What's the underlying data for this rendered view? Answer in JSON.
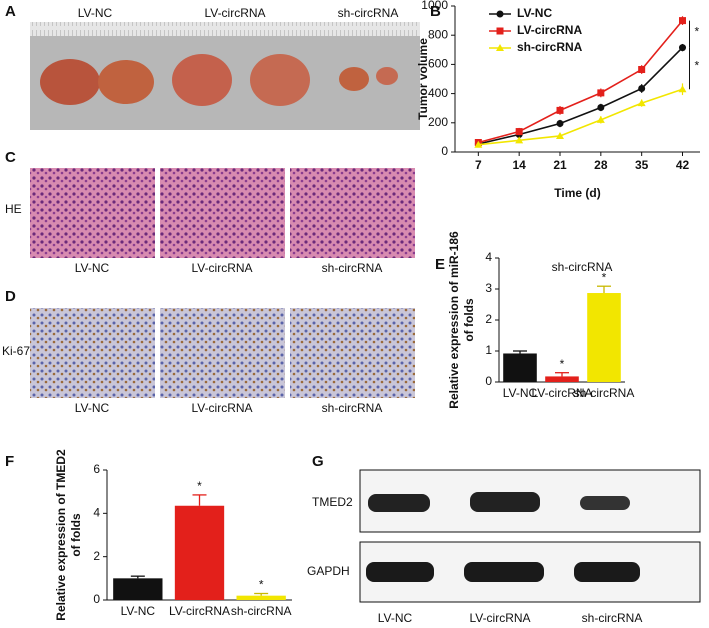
{
  "panels": {
    "A": {
      "letter": "A",
      "labels": [
        "LV-NC",
        "LV-circRNA",
        "sh-circRNA"
      ]
    },
    "C": {
      "letter": "C",
      "stain": "HE",
      "labels": [
        "LV-NC",
        "LV-circRNA",
        "sh-circRNA"
      ]
    },
    "D": {
      "letter": "D",
      "stain": "Ki-67",
      "labels": [
        "LV-NC",
        "LV-circRNA",
        "sh-circRNA"
      ]
    },
    "G": {
      "letter": "G",
      "bands": [
        "TMED2",
        "GAPDH"
      ],
      "labels": [
        "LV-NC",
        "LV-circRNA",
        "sh-circRNA"
      ]
    }
  },
  "chart_data": [
    {
      "type": "line",
      "panel": "B",
      "x_label": "Time (d)",
      "y_label": "Tumor volume",
      "x": [
        7,
        14,
        21,
        28,
        35,
        42
      ],
      "xlim": [
        3,
        45
      ],
      "xticks": [
        7,
        14,
        21,
        28,
        35,
        42
      ],
      "ylim": [
        0,
        1000
      ],
      "yticks": [
        0,
        200,
        400,
        600,
        800,
        1000
      ],
      "legend": "upper-left",
      "series": [
        {
          "name": "LV-NC",
          "color": "#111111",
          "marker": "circle",
          "values": [
            55,
            120,
            195,
            305,
            435,
            715
          ],
          "errors": [
            15,
            20,
            25,
            25,
            30,
            25
          ]
        },
        {
          "name": "LV-circRNA",
          "color": "#e3201b",
          "marker": "square",
          "values": [
            65,
            140,
            285,
            405,
            565,
            900
          ],
          "errors": [
            20,
            25,
            30,
            30,
            30,
            30
          ]
        },
        {
          "name": "sh-circRNA",
          "color": "#f2e600",
          "marker": "triangle",
          "values": [
            50,
            80,
            110,
            220,
            335,
            430
          ],
          "errors": [
            15,
            15,
            20,
            25,
            25,
            40
          ]
        }
      ],
      "annotations": [
        "*",
        "*"
      ]
    },
    {
      "type": "bar",
      "panel": "E",
      "y_label": [
        "Relative expression of miR-186",
        "of folds"
      ],
      "annotation": "sh-circRNA",
      "categories": [
        "LV-NC",
        "LV-circRNA",
        "sh-circRNA"
      ],
      "ylim": [
        0,
        4
      ],
      "yticks": [
        0,
        1,
        2,
        3,
        4
      ],
      "values": [
        0.92,
        0.18,
        2.87
      ],
      "errors": [
        0.08,
        0.12,
        0.22
      ],
      "colors": [
        "#111111",
        "#e3201b",
        "#f2e600"
      ],
      "markers": [
        null,
        "*",
        "*"
      ]
    },
    {
      "type": "bar",
      "panel": "F",
      "y_label": [
        "Relative expression of TMED2",
        "of folds"
      ],
      "categories": [
        "LV-NC",
        "LV-circRNA",
        "sh-circRNA"
      ],
      "ylim": [
        0,
        6
      ],
      "yticks": [
        0,
        2,
        4,
        6
      ],
      "values": [
        1.0,
        4.35,
        0.2
      ],
      "errors": [
        0.1,
        0.5,
        0.1
      ],
      "colors": [
        "#111111",
        "#e3201b",
        "#f2e600"
      ],
      "markers": [
        null,
        "*",
        "*"
      ]
    }
  ]
}
